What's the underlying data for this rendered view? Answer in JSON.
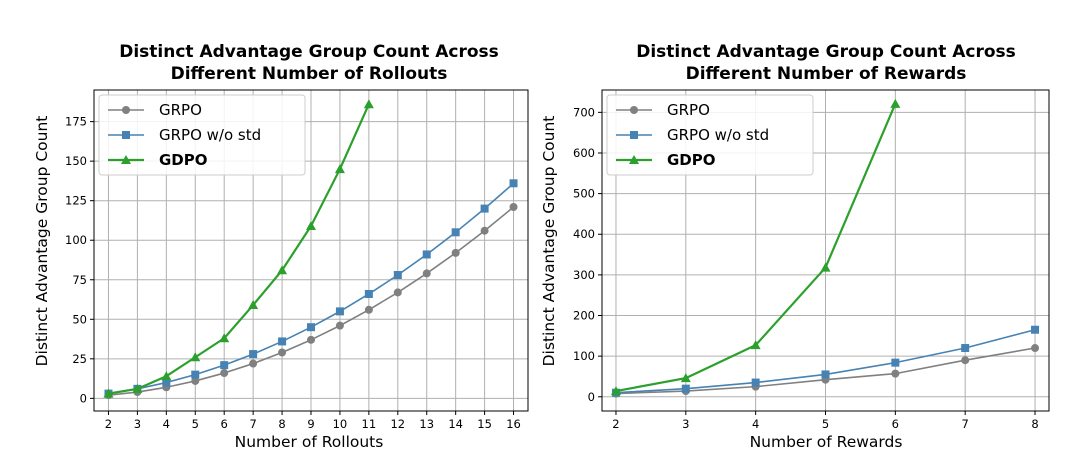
{
  "chart_data": [
    {
      "type": "line",
      "title": "Distinct Advantage Group Count Across Different Number of Rollouts",
      "title_lines": [
        "Distinct Advantage Group Count Across",
        "Different Number of Rollouts"
      ],
      "xlabel": "Number of Rollouts",
      "ylabel": "Distinct Advantage Group Count",
      "categories": [
        "2",
        "3",
        "4",
        "5",
        "6",
        "7",
        "8",
        "9",
        "10",
        "11",
        "12",
        "13",
        "14",
        "15",
        "16"
      ],
      "x_scale": "categorical",
      "ylim": [
        -8,
        195
      ],
      "yticks": [
        0,
        25,
        50,
        75,
        100,
        125,
        150,
        175
      ],
      "grid": true,
      "legend_position": "upper-left",
      "series": [
        {
          "name": "GRPO",
          "color": "#808080",
          "marker": "circle",
          "bold_label": false,
          "values": [
            2,
            4,
            7,
            11,
            16,
            22,
            29,
            37,
            46,
            56,
            67,
            79,
            92,
            106,
            121
          ]
        },
        {
          "name": "GRPO w/o std",
          "color": "#4682b4",
          "marker": "square",
          "bold_label": false,
          "values": [
            3,
            6,
            10,
            15,
            21,
            28,
            36,
            45,
            55,
            66,
            78,
            91,
            105,
            120,
            136
          ]
        },
        {
          "name": "GDPO",
          "color": "#2ca02c",
          "marker": "triangle",
          "bold_label": true,
          "values": [
            3,
            6,
            14,
            26,
            38,
            59,
            81,
            109,
            145,
            186,
            null,
            null,
            null,
            null,
            null
          ]
        }
      ]
    },
    {
      "type": "line",
      "title": "Distinct Advantage Group Count Across Different Number of Rewards",
      "title_lines": [
        "Distinct Advantage Group Count Across",
        "Different Number of Rewards"
      ],
      "xlabel": "Number of Rewards",
      "ylabel": "Distinct Advantage Group Count",
      "x": [
        2,
        3,
        4,
        5,
        6,
        7,
        8
      ],
      "x_scale": "linear",
      "xlim": [
        1.8,
        8.2
      ],
      "xticks": [
        2,
        3,
        4,
        5,
        6,
        7,
        8
      ],
      "ylim": [
        -35,
        755
      ],
      "yticks": [
        0,
        100,
        200,
        300,
        400,
        500,
        600,
        700
      ],
      "grid": true,
      "legend_position": "upper-left",
      "series": [
        {
          "name": "GRPO",
          "color": "#808080",
          "marker": "circle",
          "bold_label": false,
          "values": [
            8,
            14,
            25,
            42,
            57,
            90,
            120
          ]
        },
        {
          "name": "GRPO w/o std",
          "color": "#4682b4",
          "marker": "square",
          "bold_label": false,
          "values": [
            10,
            20,
            35,
            55,
            84,
            120,
            165
          ]
        },
        {
          "name": "GDPO",
          "color": "#2ca02c",
          "marker": "triangle",
          "bold_label": true,
          "values": [
            14,
            46,
            127,
            318,
            721,
            null,
            null
          ]
        }
      ]
    }
  ]
}
